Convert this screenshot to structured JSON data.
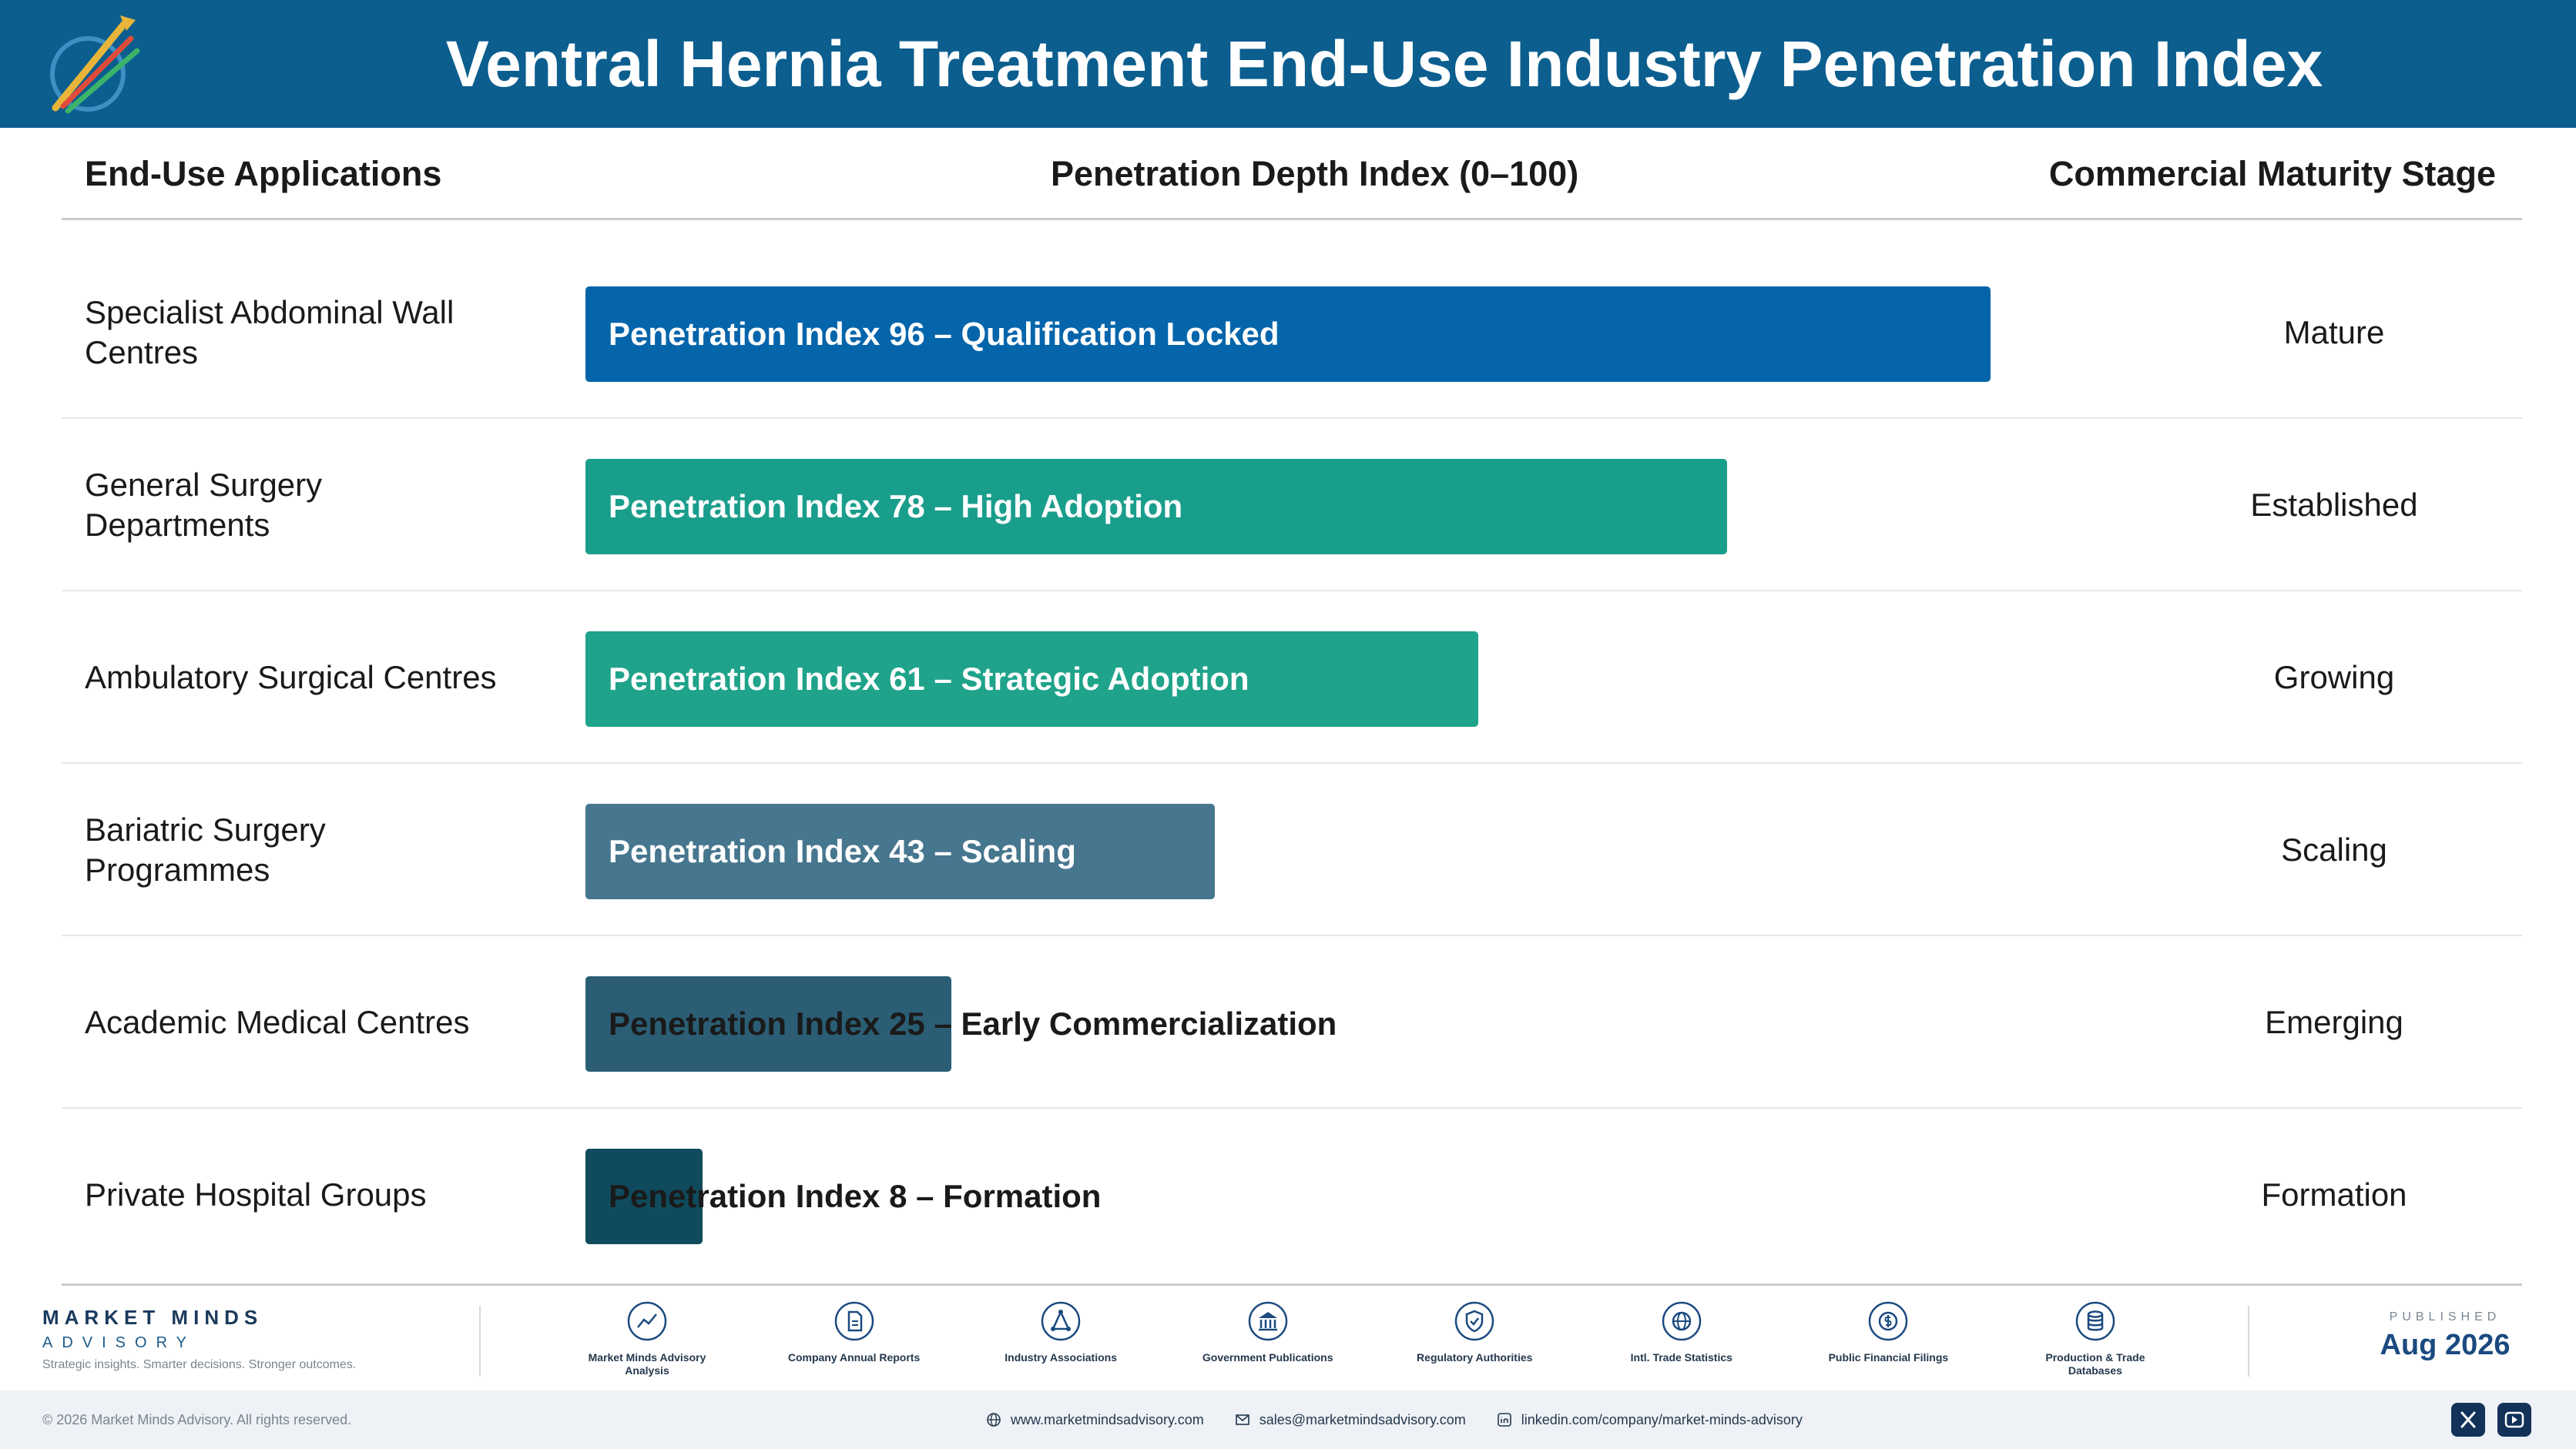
{
  "header": {
    "title": "Ventral Hernia Treatment End-Use Industry Penetration Index"
  },
  "columns": {
    "applications": "End-Use Applications",
    "depth": "Penetration Depth Index (0–100)",
    "stage": "Commercial Maturity Stage"
  },
  "chart_data": {
    "type": "bar",
    "orientation": "horizontal",
    "title": "Ventral Hernia Treatment End-Use Industry Penetration Index",
    "xlabel": "Penetration Depth Index (0–100)",
    "xlim": [
      0,
      100
    ],
    "categories": [
      "Specialist Abdominal Wall Centres",
      "General Surgery Departments",
      "Ambulatory Surgical Centres",
      "Bariatric Surgery Programmes",
      "Academic Medical Centres",
      "Private Hospital Groups"
    ],
    "values": [
      96,
      78,
      61,
      43,
      25,
      8
    ],
    "bar_labels": [
      "Penetration Index 96 – Qualification Locked",
      "Penetration Index 78 – High Adoption",
      "Penetration Index 61 – Strategic Adoption",
      "Penetration Index 43 – Scaling",
      "Penetration Index 25 – Early Commercialization",
      "Penetration Index 8 – Formation"
    ],
    "stages": [
      "Mature",
      "Established",
      "Growing",
      "Scaling",
      "Emerging",
      "Formation"
    ],
    "colors": [
      "#0565ab",
      "#1a9e8c",
      "#1fa38a",
      "#47768f",
      "#2b5e75",
      "#0f4a5d"
    ]
  },
  "footer": {
    "brand_name": "MARKET MINDS",
    "brand_sub": "ADVISORY",
    "brand_tagline": "Strategic insights. Smarter decisions. Stronger outcomes.",
    "sources": [
      {
        "icon": "chart-line-icon",
        "label": "Market Minds Advisory Analysis"
      },
      {
        "icon": "document-icon",
        "label": "Company Annual Reports"
      },
      {
        "icon": "network-icon",
        "label": "Industry Associations"
      },
      {
        "icon": "government-building-icon",
        "label": "Government Publications"
      },
      {
        "icon": "shield-check-icon",
        "label": "Regulatory Authorities"
      },
      {
        "icon": "globe-icon",
        "label": "Intl. Trade Statistics"
      },
      {
        "icon": "dollar-coin-icon",
        "label": "Public Financial Filings"
      },
      {
        "icon": "database-icon",
        "label": "Production & Trade Databases"
      }
    ],
    "published_label": "PUBLISHED",
    "published_date": "Aug 2026",
    "copyright": "© 2026 Market Minds Advisory. All rights reserved.",
    "website": "www.marketmindsadvisory.com",
    "email": "sales@marketmindsadvisory.com",
    "linkedin": "linkedin.com/company/market-minds-advisory"
  }
}
